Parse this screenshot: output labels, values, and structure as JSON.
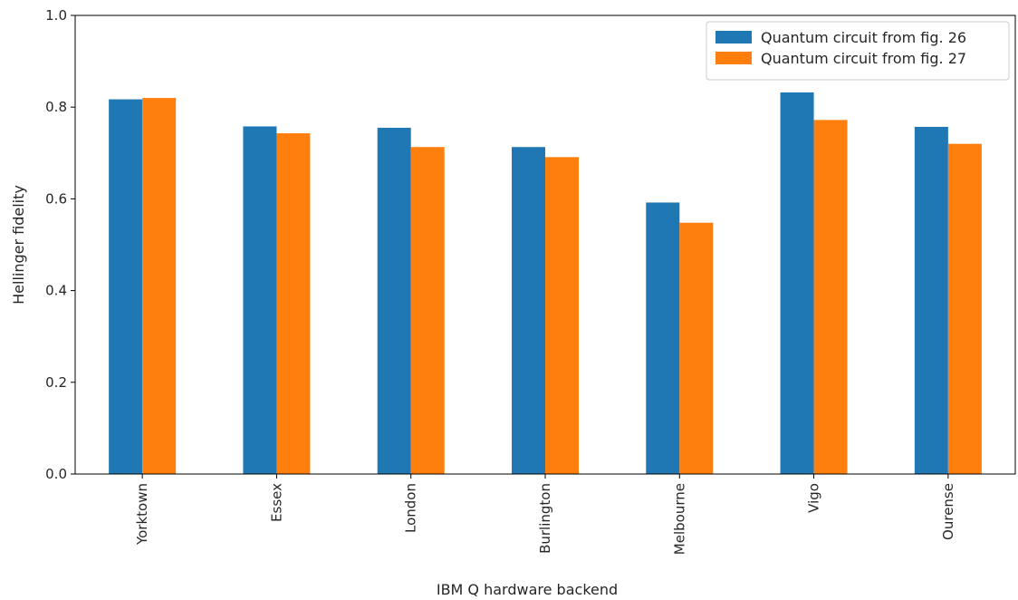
{
  "chart_data": {
    "type": "bar",
    "title": "",
    "xlabel": "IBM Q hardware backend",
    "ylabel": "Hellinger fidelity",
    "ylim": [
      0,
      1.0
    ],
    "yticks": [
      "0.0",
      "0.2",
      "0.4",
      "0.6",
      "0.8",
      "1.0"
    ],
    "categories": [
      "Yorktown",
      "Essex",
      "London",
      "Burlington",
      "Melbourne",
      "Vigo",
      "Ourense"
    ],
    "series": [
      {
        "name": "Quantum circuit from fig. 26",
        "color": "#1f77b4",
        "values": [
          0.817,
          0.758,
          0.755,
          0.713,
          0.592,
          0.832,
          0.757
        ]
      },
      {
        "name": "Quantum circuit from fig. 27",
        "color": "#ff7f0e",
        "values": [
          0.82,
          0.743,
          0.713,
          0.691,
          0.548,
          0.772,
          0.72
        ]
      }
    ],
    "grid": false,
    "legend_position": "top-right"
  }
}
